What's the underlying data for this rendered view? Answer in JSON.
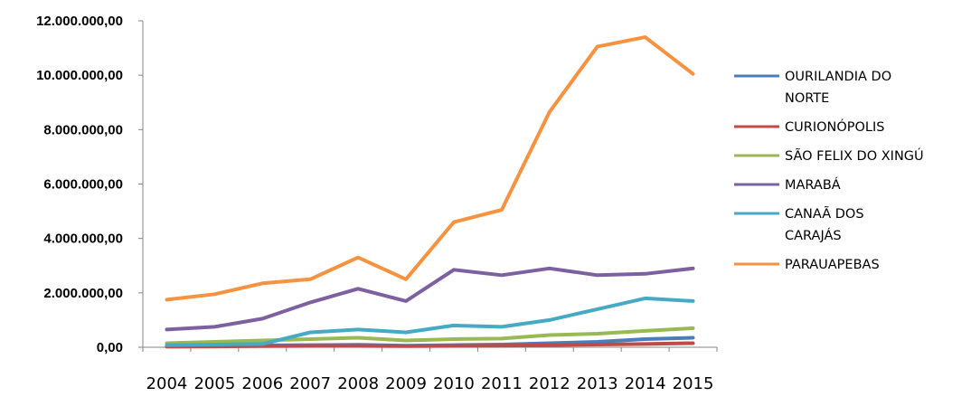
{
  "chart_data": {
    "type": "line",
    "title": "",
    "xlabel": "",
    "ylabel": "",
    "x": [
      "2004",
      "2005",
      "2006",
      "2007",
      "2008",
      "2009",
      "2010",
      "2011",
      "2012",
      "2013",
      "2014",
      "2015"
    ],
    "ylim": [
      0,
      12000000
    ],
    "y_ticks": [
      {
        "value": 0,
        "label": "0,00"
      },
      {
        "value": 2000000,
        "label": "2.000.000,00"
      },
      {
        "value": 4000000,
        "label": "4.000.000,00"
      },
      {
        "value": 6000000,
        "label": "6.000.000,00"
      },
      {
        "value": 8000000,
        "label": "8.000.000,00"
      },
      {
        "value": 10000000,
        "label": "10.000.000,00"
      },
      {
        "value": 12000000,
        "label": "12.000.000,00"
      }
    ],
    "grid": false,
    "legend_position": "right",
    "series": [
      {
        "name": "OURILANDIA DO NORTE",
        "legend_lines": [
          "OURILANDIA DO",
          "NORTE"
        ],
        "color": "#4a7ebb",
        "values": [
          50000,
          60000,
          70000,
          80000,
          90000,
          60000,
          80000,
          100000,
          150000,
          200000,
          300000,
          350000
        ]
      },
      {
        "name": "CURIONÓPOLIS",
        "legend_lines": [
          "CURIONÓPOLIS"
        ],
        "color": "#be4b48",
        "values": [
          20000,
          30000,
          40000,
          50000,
          50000,
          40000,
          50000,
          60000,
          80000,
          100000,
          120000,
          150000
        ]
      },
      {
        "name": "SÃO FELIX DO XINGÚ",
        "legend_lines": [
          "SÃO FELIX DO XINGÚ"
        ],
        "color": "#98b954",
        "values": [
          150000,
          200000,
          250000,
          300000,
          350000,
          250000,
          300000,
          320000,
          450000,
          500000,
          600000,
          700000
        ]
      },
      {
        "name": "MARABÁ",
        "legend_lines": [
          "MARABÁ"
        ],
        "color": "#7d60a0",
        "values": [
          650000,
          750000,
          1050000,
          1650000,
          2150000,
          1700000,
          2850000,
          2650000,
          2900000,
          2650000,
          2700000,
          2900000
        ]
      },
      {
        "name": "CANAÃ DOS CARAJÁS",
        "legend_lines": [
          "CANAÃ DOS",
          "CARAJÁS"
        ],
        "color": "#46aac5",
        "values": [
          80000,
          100000,
          120000,
          550000,
          650000,
          550000,
          800000,
          750000,
          1000000,
          1400000,
          1800000,
          1700000
        ]
      },
      {
        "name": "PARAUAPEBAS",
        "legend_lines": [
          "PARAUAPEBAS"
        ],
        "color": "#f69240",
        "values": [
          1750000,
          1950000,
          2350000,
          2500000,
          3300000,
          2500000,
          4600000,
          5050000,
          8650000,
          11050000,
          11400000,
          10050000
        ]
      }
    ]
  }
}
